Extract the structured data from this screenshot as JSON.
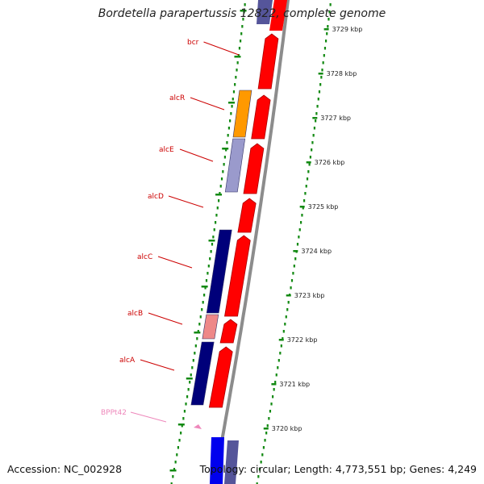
{
  "title": "Bordetella parapertussis 12822, complete genome",
  "footer": {
    "accession": "Accession: NC_002928",
    "topology": "Topology: circular; Length: 4,773,551 bp; Genes: 4,249"
  },
  "colors": {
    "forward_gene": "#ff0000",
    "label": "#cc0000",
    "pseudo_label": "#ee88bb",
    "tick": "#138a13",
    "backbone": "#8c8c8c"
  },
  "kbp_ticks": [
    {
      "value": 3729,
      "label": "3729 kbp"
    },
    {
      "value": 3728,
      "label": "3728 kbp"
    },
    {
      "value": 3727,
      "label": "3727 kbp"
    },
    {
      "value": 3726,
      "label": "3726 kbp"
    },
    {
      "value": 3725,
      "label": "3725 kbp"
    },
    {
      "value": 3724,
      "label": "3724 kbp"
    },
    {
      "value": 3723,
      "label": "3723 kbp"
    },
    {
      "value": 3722,
      "label": "3722 kbp"
    },
    {
      "value": 3721,
      "label": "3721 kbp"
    },
    {
      "value": 3720,
      "label": "3720 kbp"
    }
  ],
  "gene_labels": [
    {
      "name": "bcr",
      "kind": "gene"
    },
    {
      "name": "alcR",
      "kind": "gene"
    },
    {
      "name": "alcE",
      "kind": "gene"
    },
    {
      "name": "alcD",
      "kind": "gene"
    },
    {
      "name": "alcC",
      "kind": "gene"
    },
    {
      "name": "alcB",
      "kind": "gene"
    },
    {
      "name": "alcA",
      "kind": "gene"
    },
    {
      "name": "BPPt42",
      "kind": "pseudo"
    }
  ]
}
